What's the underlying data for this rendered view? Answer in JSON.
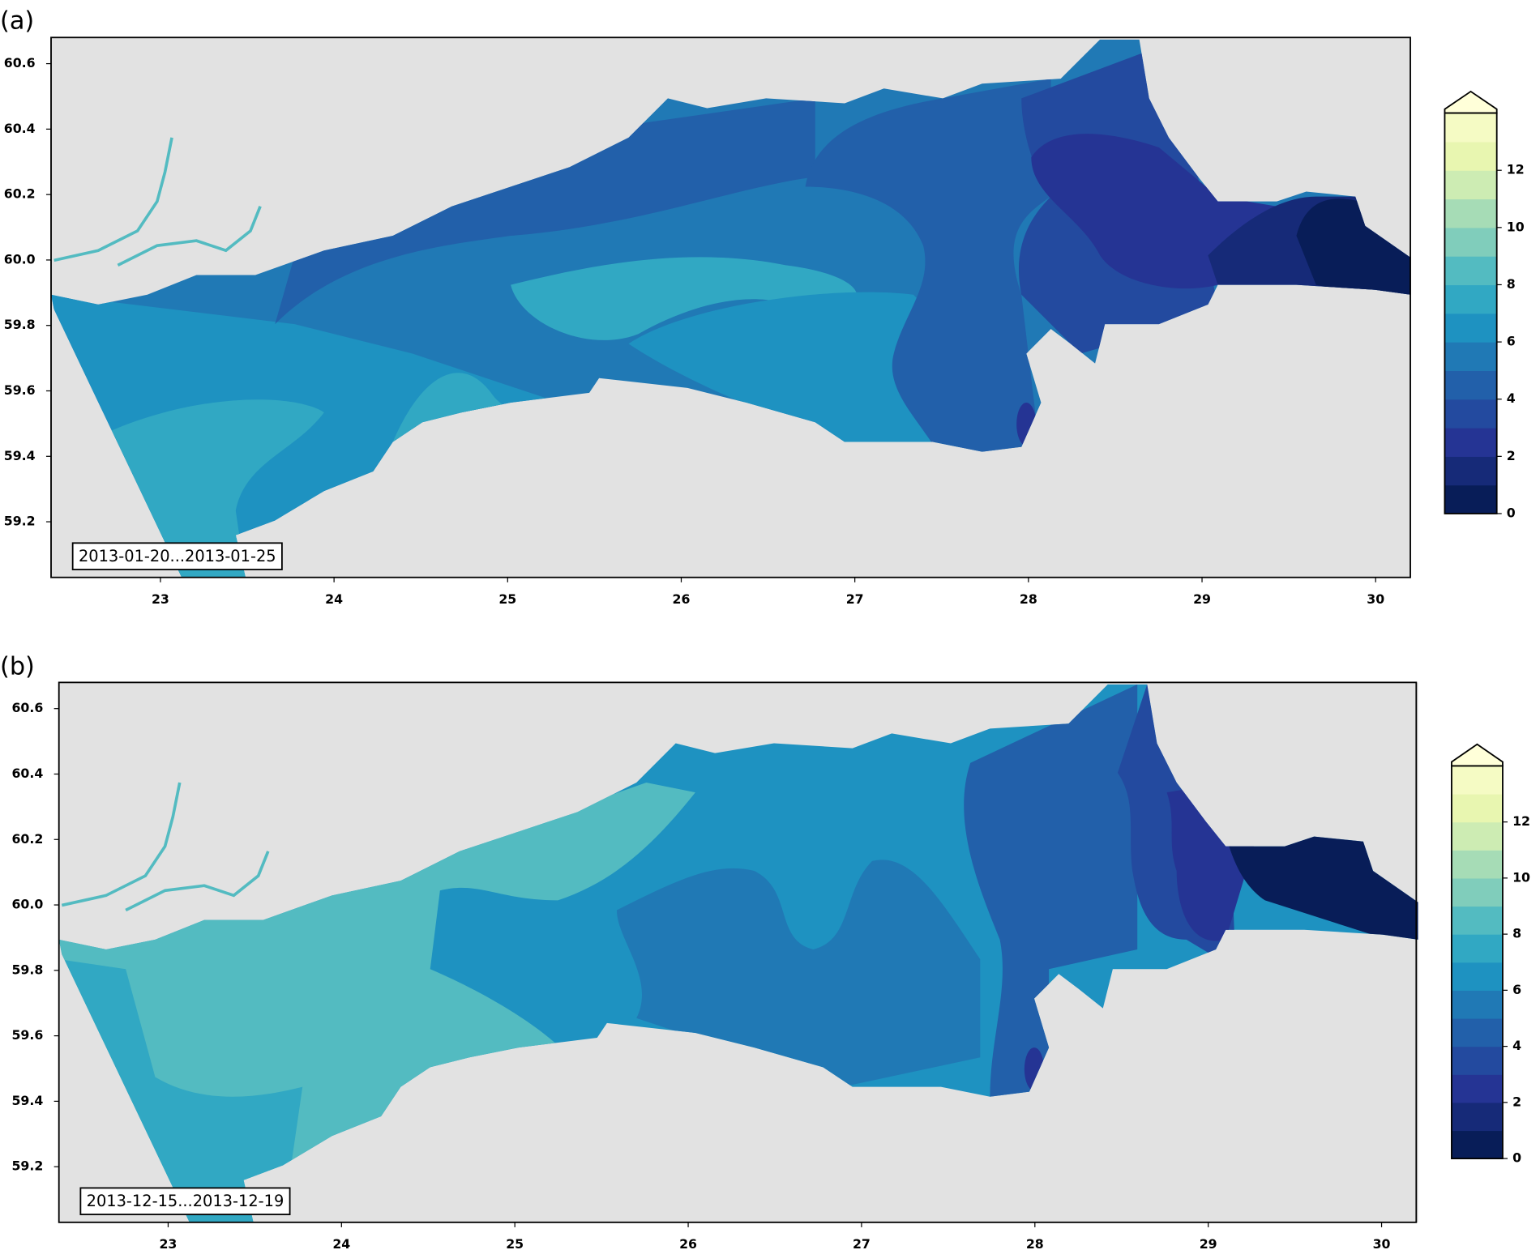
{
  "panels": [
    {
      "label": "(a)",
      "date_label": "2013-01-20...2013-01-25",
      "xlim": [
        22.37,
        30.2
      ],
      "ylim": [
        59.03,
        60.68
      ],
      "xticks": [
        23,
        24,
        25,
        26,
        27,
        28,
        29,
        30
      ],
      "yticks": [
        59.2,
        59.4,
        59.6,
        59.8,
        {
          "value": 60,
          "label": "60.0"
        },
        60.2,
        60.4,
        60.6
      ],
      "colorbar": {
        "levels": [
          0,
          1,
          2,
          3,
          4,
          5,
          6,
          7,
          8,
          9,
          10,
          11,
          12,
          13,
          14
        ],
        "colors": [
          "#081d58",
          "#162a78",
          "#253494",
          "#234a9f",
          "#2260aa",
          "#2079b5",
          "#1e92c1",
          "#31a8c3",
          "#53bbc1",
          "#80cdbb",
          "#a6dcb6",
          "#cdecb3",
          "#e8f6b0",
          "#f5fbc4",
          "#ffffd9"
        ],
        "ticks": [
          0,
          2,
          4,
          6,
          8,
          10,
          12
        ]
      }
    },
    {
      "label": "(b)",
      "date_label": "2013-12-15...2013-12-19",
      "xlim": [
        22.37,
        30.2
      ],
      "ylim": [
        59.03,
        60.68
      ],
      "xticks": [
        23,
        24,
        25,
        26,
        27,
        28,
        29,
        30
      ],
      "yticks": [
        59.2,
        59.4,
        59.6,
        59.8,
        {
          "value": 60,
          "label": "60.0"
        },
        60.2,
        60.4,
        60.6
      ],
      "colorbar": {
        "levels": [
          0,
          1,
          2,
          3,
          4,
          5,
          6,
          7,
          8,
          9,
          10,
          11,
          12,
          13,
          14
        ],
        "colors": [
          "#081d58",
          "#162a78",
          "#253494",
          "#234a9f",
          "#2260aa",
          "#2079b5",
          "#1e92c1",
          "#31a8c3",
          "#53bbc1",
          "#80cdbb",
          "#a6dcb6",
          "#cdecb3",
          "#e8f6b0",
          "#f5fbc4",
          "#ffffd9"
        ],
        "ticks": [
          0,
          2,
          4,
          6,
          8,
          10,
          12
        ]
      }
    }
  ]
}
